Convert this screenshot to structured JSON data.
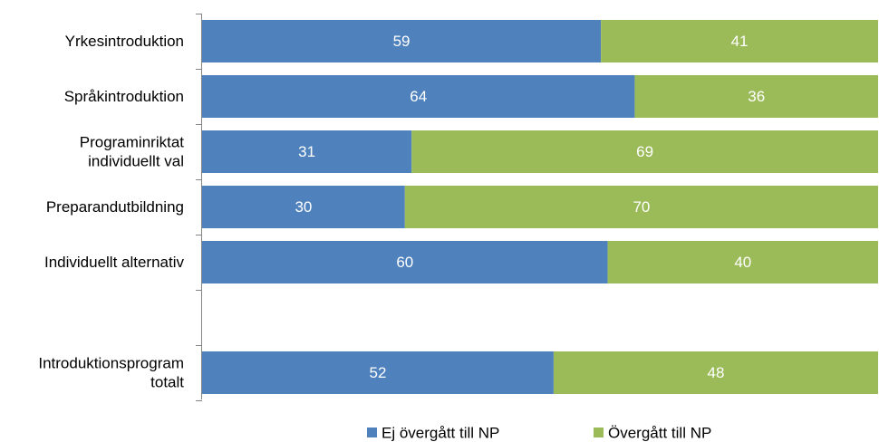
{
  "chart_data": {
    "type": "bar",
    "orientation": "horizontal",
    "stacked": true,
    "categories": [
      [
        "Yrkesintroduktion"
      ],
      [
        "Språkintroduktion"
      ],
      [
        "Programinriktat",
        "individuellt val"
      ],
      [
        "Preparandutbildning"
      ],
      [
        "Individuellt alternativ"
      ],
      [],
      [
        "Introduktionsprogram",
        "totalt"
      ]
    ],
    "series": [
      {
        "name": "Ej övergått till NP",
        "color": "#4f81bd",
        "values": [
          59,
          64,
          31,
          30,
          60,
          null,
          52
        ]
      },
      {
        "name": "Övergått till NP",
        "color": "#9bbb59",
        "values": [
          41,
          36,
          69,
          70,
          40,
          null,
          48
        ]
      }
    ],
    "xlim": [
      0,
      100
    ],
    "grid": false,
    "legend_position": "bottom"
  }
}
